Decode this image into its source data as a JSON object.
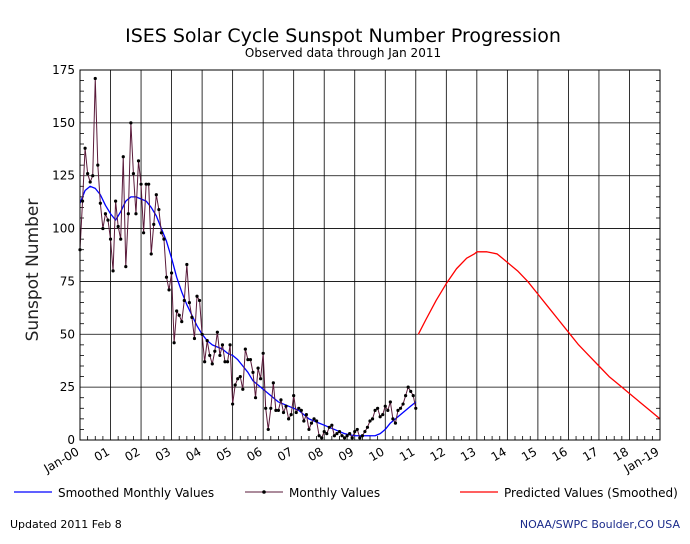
{
  "chart_data": {
    "type": "line",
    "title": "ISES Solar Cycle Sunspot Number Progression",
    "subtitle": "Observed data through Jan 2011",
    "ylabel": "Sunspot Number",
    "xlabel": "",
    "ylim": [
      0,
      175
    ],
    "yticks": [
      0,
      25,
      50,
      75,
      100,
      125,
      150,
      175
    ],
    "xlim": [
      0,
      228
    ],
    "xticks": [
      {
        "m": 0,
        "label": "Jan-00"
      },
      {
        "m": 12,
        "label": "01"
      },
      {
        "m": 24,
        "label": "02"
      },
      {
        "m": 36,
        "label": "03"
      },
      {
        "m": 48,
        "label": "04"
      },
      {
        "m": 60,
        "label": "05"
      },
      {
        "m": 72,
        "label": "06"
      },
      {
        "m": 84,
        "label": "07"
      },
      {
        "m": 96,
        "label": "08"
      },
      {
        "m": 108,
        "label": "09"
      },
      {
        "m": 120,
        "label": "10"
      },
      {
        "m": 132,
        "label": "11"
      },
      {
        "m": 144,
        "label": "12"
      },
      {
        "m": 156,
        "label": "13"
      },
      {
        "m": 168,
        "label": "14"
      },
      {
        "m": 180,
        "label": "15"
      },
      {
        "m": 192,
        "label": "16"
      },
      {
        "m": 204,
        "label": "17"
      },
      {
        "m": 216,
        "label": "18"
      },
      {
        "m": 228,
        "label": "Jan-19"
      }
    ],
    "grid": true,
    "legend_position": "bottom",
    "series": [
      {
        "name": "Smoothed Monthly Values",
        "color": "#0000ff",
        "x": [
          0,
          2,
          4,
          6,
          8,
          10,
          12,
          14,
          16,
          18,
          20,
          22,
          24,
          26,
          28,
          30,
          32,
          34,
          36,
          38,
          40,
          42,
          44,
          46,
          48,
          50,
          52,
          54,
          56,
          58,
          60,
          62,
          64,
          66,
          68,
          70,
          72,
          74,
          76,
          78,
          80,
          82,
          84,
          86,
          88,
          90,
          92,
          94,
          96,
          98,
          100,
          102,
          104,
          106,
          108,
          110,
          112,
          114,
          116,
          118,
          120,
          122,
          124,
          126,
          128,
          130,
          132
        ],
        "values": [
          112,
          118,
          120,
          119,
          116,
          111,
          107,
          104,
          108,
          113,
          115,
          115,
          114,
          113,
          110,
          106,
          100,
          94,
          86,
          77,
          70,
          64,
          59,
          54,
          50,
          47,
          45,
          44,
          43,
          41,
          40,
          38,
          35,
          32,
          28,
          26,
          24,
          22,
          20,
          18,
          17,
          16,
          15,
          14,
          12,
          10,
          9,
          8,
          7,
          6,
          5,
          4,
          3,
          2.5,
          2,
          2,
          2,
          2,
          2,
          3,
          5,
          8,
          10,
          12,
          14,
          16,
          18
        ]
      },
      {
        "name": "Monthly Values",
        "color": "#5a1a3a",
        "x": [
          0,
          1,
          2,
          3,
          4,
          5,
          6,
          7,
          8,
          9,
          10,
          11,
          12,
          13,
          14,
          15,
          16,
          17,
          18,
          19,
          20,
          21,
          22,
          23,
          24,
          25,
          26,
          27,
          28,
          29,
          30,
          31,
          32,
          33,
          34,
          35,
          36,
          37,
          38,
          39,
          40,
          41,
          42,
          43,
          44,
          45,
          46,
          47,
          48,
          49,
          50,
          51,
          52,
          53,
          54,
          55,
          56,
          57,
          58,
          59,
          60,
          61,
          62,
          63,
          64,
          65,
          66,
          67,
          68,
          69,
          70,
          71,
          72,
          73,
          74,
          75,
          76,
          77,
          78,
          79,
          80,
          81,
          82,
          83,
          84,
          85,
          86,
          87,
          88,
          89,
          90,
          91,
          92,
          93,
          94,
          95,
          96,
          97,
          98,
          99,
          100,
          101,
          102,
          103,
          104,
          105,
          106,
          107,
          108,
          109,
          110,
          111,
          112,
          113,
          114,
          115,
          116,
          117,
          118,
          119,
          120,
          121,
          122,
          123,
          124,
          125,
          126,
          127,
          128,
          129,
          130,
          131,
          132
        ],
        "values": [
          90,
          113,
          138,
          126,
          122,
          125,
          171,
          130,
          112,
          100,
          107,
          104,
          95,
          80,
          113,
          101,
          95,
          134,
          82,
          107,
          150,
          126,
          107,
          132,
          121,
          98,
          121,
          121,
          88,
          102,
          116,
          109,
          98,
          95,
          77,
          71,
          79,
          46,
          61,
          59,
          56,
          66,
          83,
          65,
          58,
          48,
          68,
          66,
          50,
          37,
          47,
          40,
          36,
          42,
          51,
          40,
          45,
          37,
          37,
          45,
          17,
          26,
          29,
          30,
          24,
          43,
          38,
          38,
          32,
          20,
          34,
          29,
          41,
          15,
          5,
          15,
          27,
          14,
          14,
          19,
          13,
          16,
          10,
          12,
          21,
          13,
          15,
          14,
          9,
          12,
          5,
          8,
          10,
          9,
          2,
          1,
          4,
          3,
          6,
          7,
          2,
          3,
          4,
          2,
          1,
          2,
          3,
          1,
          4,
          5,
          1,
          2,
          4,
          6,
          9,
          10,
          14,
          15,
          11,
          12,
          16,
          14,
          18,
          10,
          8,
          14,
          15,
          17,
          21,
          25,
          23,
          21,
          15
        ]
      },
      {
        "name": "Predicted Values (Smoothed)",
        "color": "#ff0000",
        "x": [
          133,
          136,
          140,
          144,
          148,
          152,
          155,
          156,
          158,
          160,
          162,
          164,
          166,
          168,
          172,
          176,
          180,
          184,
          188,
          192,
          196,
          200,
          204,
          208,
          212,
          216,
          220,
          224,
          228
        ],
        "values": [
          50,
          57,
          66,
          74,
          81,
          86,
          88,
          89,
          89,
          89,
          88.5,
          88,
          86,
          84,
          80,
          75,
          69,
          63,
          57,
          51,
          45,
          40,
          35,
          30,
          26,
          22,
          18,
          14,
          10
        ]
      }
    ]
  },
  "footer": {
    "updated": "Updated 2011 Feb  8",
    "credit": "NOAA/SWPC Boulder,CO USA",
    "credit_color": "#1a2a8a"
  }
}
